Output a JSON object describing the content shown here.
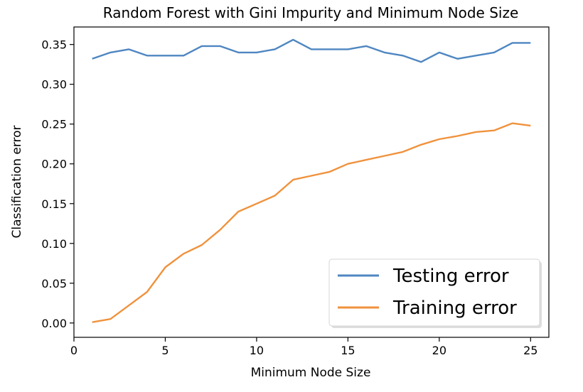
{
  "chart_data": {
    "type": "line",
    "title": "Random Forest with Gini Impurity and Minimum Node Size",
    "xlabel": "Minimum Node Size",
    "ylabel": "Classification error",
    "xlim": [
      0,
      26
    ],
    "ylim": [
      -0.018,
      0.372
    ],
    "x_ticks": [
      0,
      5,
      10,
      15,
      20,
      25
    ],
    "x_tick_labels": [
      "0",
      "5",
      "10",
      "15",
      "20",
      "25"
    ],
    "y_ticks": [
      0.0,
      0.05,
      0.1,
      0.15,
      0.2,
      0.25,
      0.3,
      0.35
    ],
    "y_tick_labels": [
      "0.00",
      "0.05",
      "0.10",
      "0.15",
      "0.20",
      "0.25",
      "0.30",
      "0.35"
    ],
    "grid": false,
    "legend_position": "lower-right",
    "x": [
      1,
      2,
      3,
      4,
      5,
      6,
      7,
      8,
      9,
      10,
      11,
      12,
      13,
      14,
      15,
      16,
      17,
      18,
      19,
      20,
      21,
      22,
      23,
      24,
      25
    ],
    "series": [
      {
        "name": "Testing error",
        "color": "#4e86c1",
        "values": [
          0.332,
          0.34,
          0.344,
          0.336,
          0.336,
          0.336,
          0.348,
          0.348,
          0.34,
          0.34,
          0.344,
          0.356,
          0.344,
          0.344,
          0.344,
          0.348,
          0.34,
          0.336,
          0.328,
          0.34,
          0.332,
          0.336,
          0.34,
          0.352,
          0.352
        ]
      },
      {
        "name": "Training error",
        "color": "#f0923d",
        "values": [
          0.001,
          0.005,
          0.022,
          0.039,
          0.07,
          0.087,
          0.098,
          0.117,
          0.14,
          0.15,
          0.16,
          0.18,
          0.185,
          0.19,
          0.2,
          0.205,
          0.21,
          0.215,
          0.224,
          0.231,
          0.235,
          0.24,
          0.242,
          0.251,
          0.248
        ]
      }
    ]
  }
}
